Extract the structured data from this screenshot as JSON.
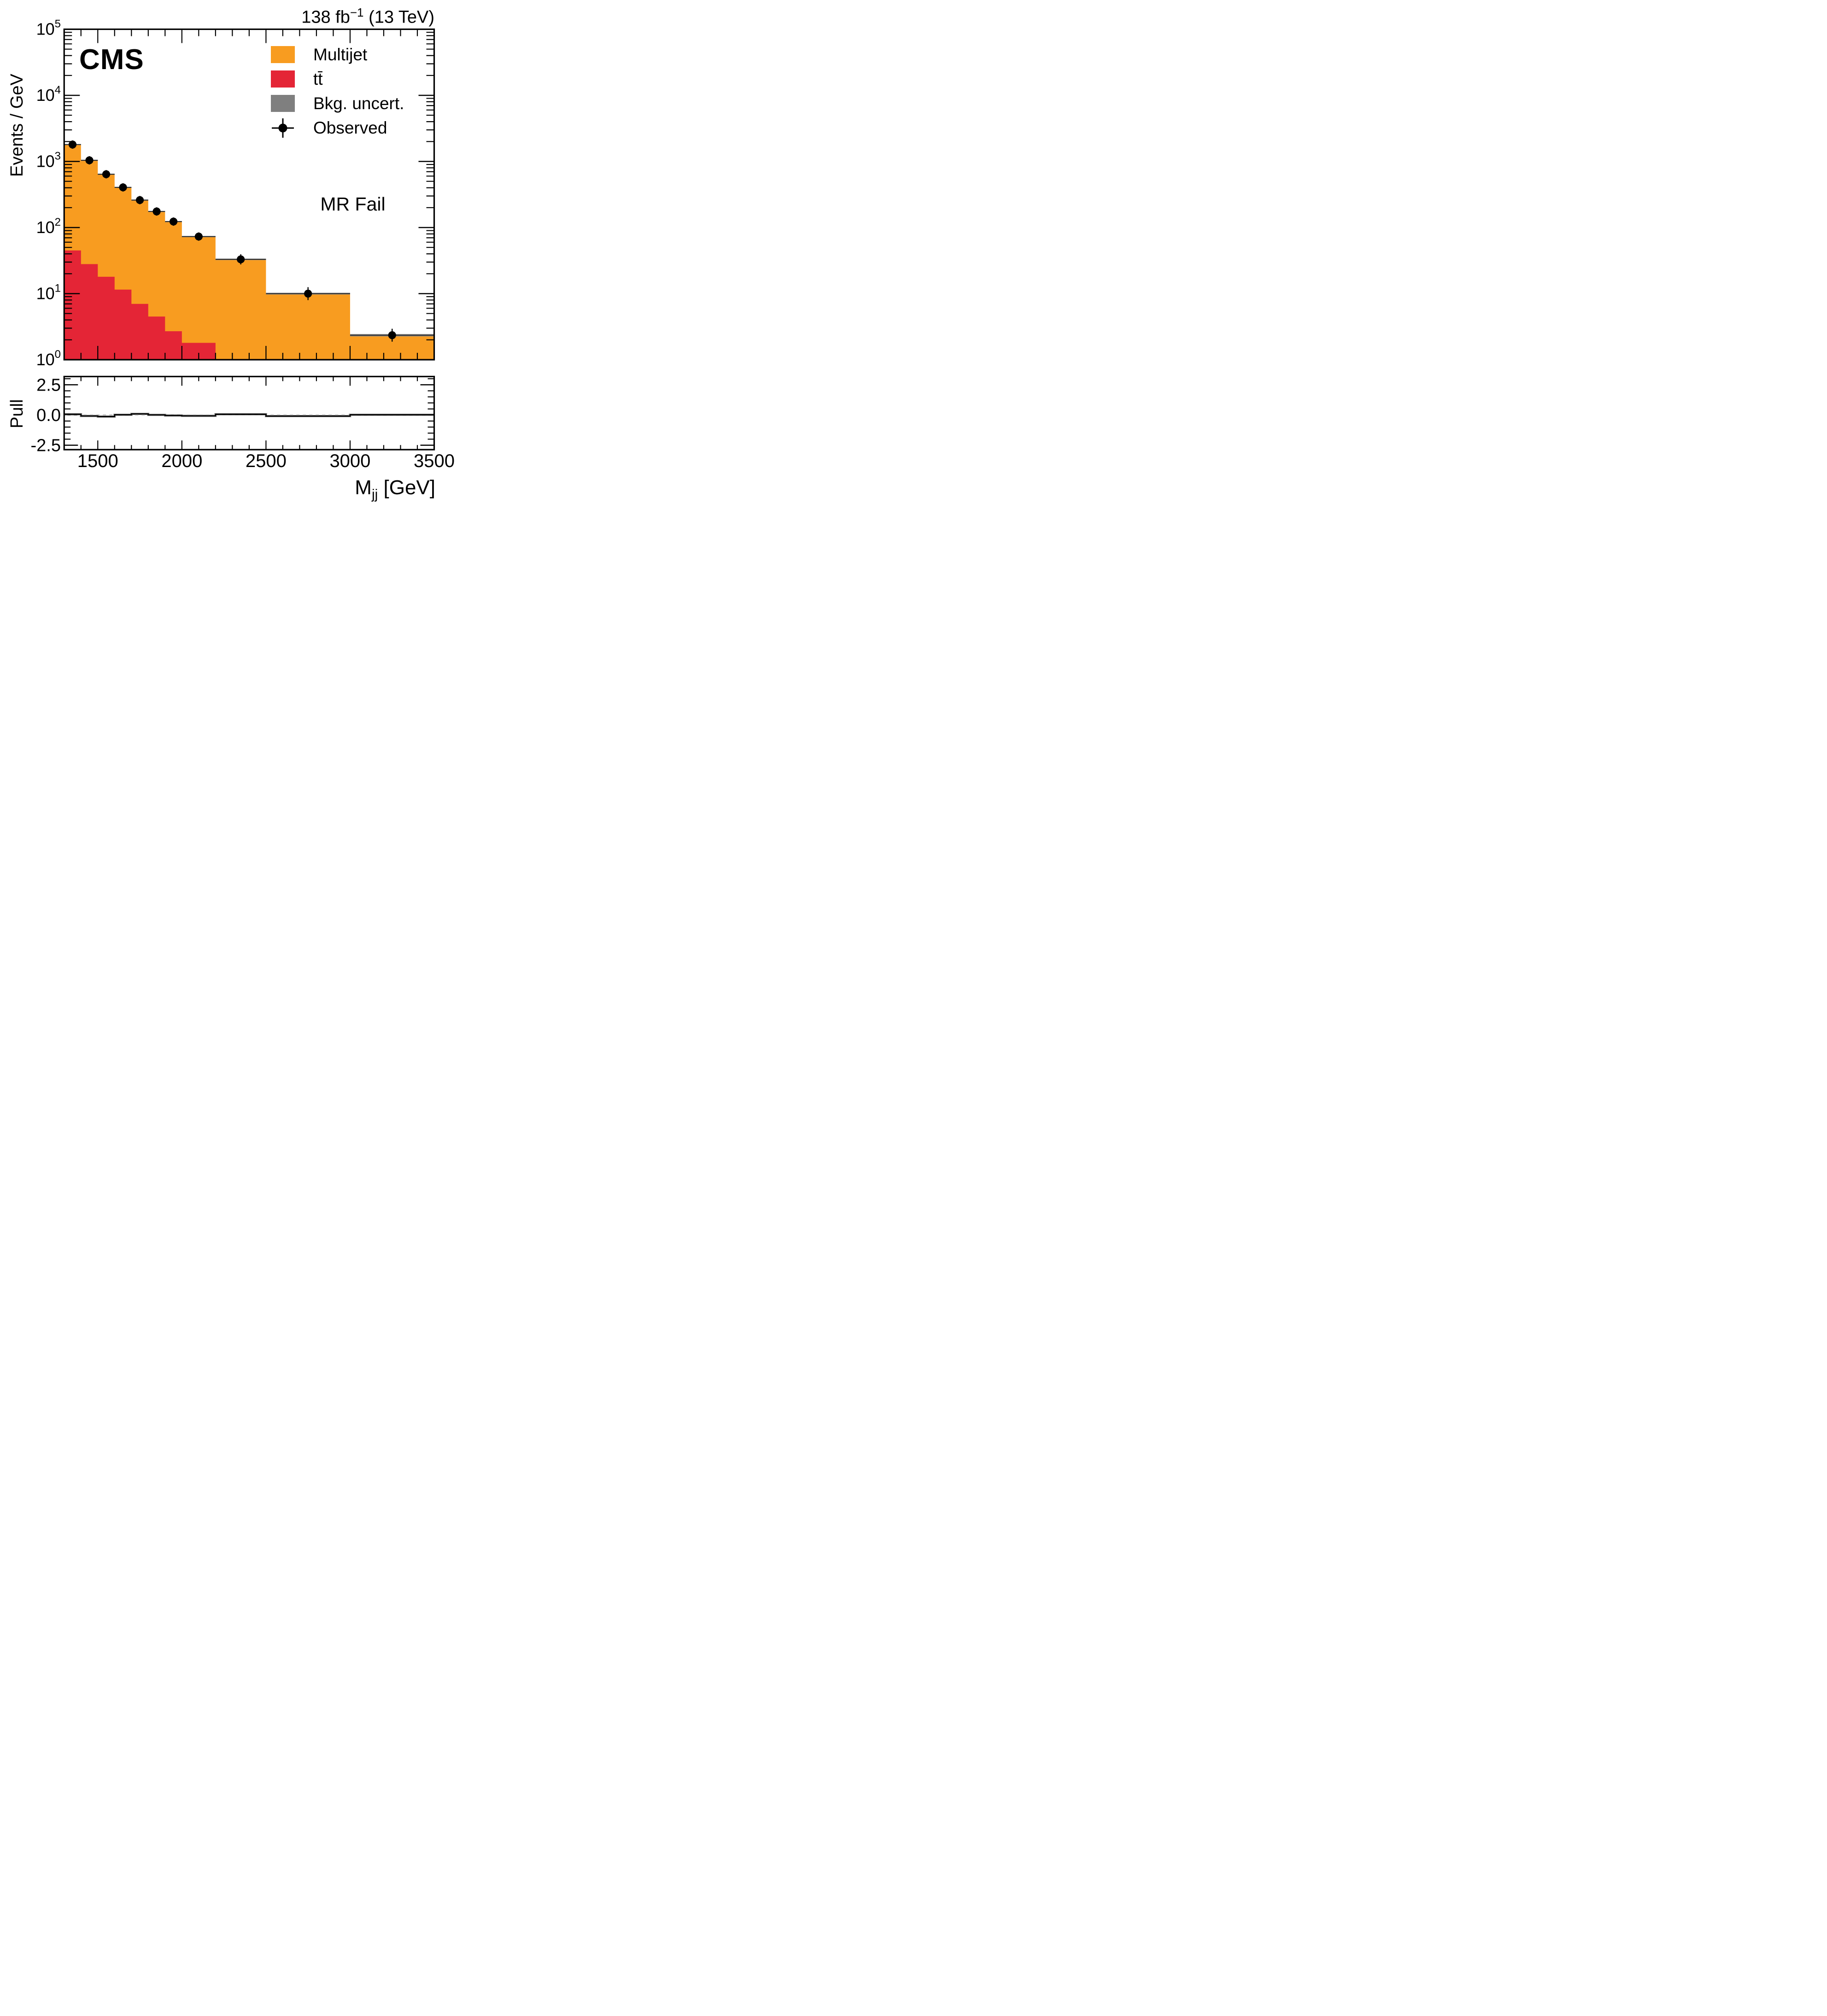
{
  "meta": {
    "experiment": "CMS",
    "lumi_main": "138 fb",
    "lumi_sup": "−1",
    "lumi_rest": " (13 TeV)",
    "region_label": "MR Fail"
  },
  "legend": {
    "items": [
      {
        "label": "Multijet",
        "color": "#F89C20",
        "kind": "box"
      },
      {
        "label": "tt̄",
        "color": "#E42536",
        "kind": "box"
      },
      {
        "label": "Bkg. uncert.",
        "color": "#7F7F7F",
        "kind": "box"
      },
      {
        "label": "Observed",
        "color": "#000000",
        "kind": "marker"
      }
    ]
  },
  "axes": {
    "y_title": "Events / GeV",
    "pull_title": "Pull",
    "x_title_main": "M",
    "x_title_sub": "jj",
    "x_title_rest": " [GeV]"
  },
  "chart_data": {
    "type": "bar",
    "subtype": "stacked-log-histogram-with-pull",
    "xlabel": "Mjj [GeV]",
    "ylabel": "Events / GeV",
    "xlim": [
      1300,
      3500
    ],
    "ylim_exponents": [
      0,
      5
    ],
    "xticks": [
      1500,
      2000,
      2500,
      3000,
      3500
    ],
    "x_minor_step": 100,
    "bin_edges": [
      1300,
      1400,
      1500,
      1600,
      1700,
      1800,
      1900,
      2000,
      2200,
      2500,
      3000,
      3500
    ],
    "series": [
      {
        "name": "Total background (stack top)",
        "values": [
          1800,
          1040,
          640,
          405,
          260,
          175,
          123,
          73,
          33,
          10,
          2.35
        ]
      },
      {
        "name": "tt̄",
        "values": [
          45,
          28,
          18,
          11.5,
          7,
          4.5,
          2.7,
          1.8,
          0,
          0,
          0
        ]
      }
    ],
    "observed": [
      1800,
      1040,
      640,
      405,
      260,
      175,
      123,
      73,
      33,
      10,
      2.35
    ],
    "uncert_rel": [
      0.02,
      0.02,
      0.02,
      0.02,
      0.02,
      0.02,
      0.02,
      0.022,
      0.025,
      0.03,
      0.04
    ],
    "pull": {
      "values": [
        0.06,
        -0.08,
        -0.13,
        0.02,
        0.09,
        0.01,
        -0.04,
        -0.07,
        0.06,
        -0.09,
        0.02
      ],
      "ylim": [
        -2.86,
        3.14
      ],
      "ytick_labels": [
        "2.5",
        "0.0",
        "-2.5"
      ],
      "ytick_values": [
        2.5,
        0.0,
        -2.5
      ],
      "yminor_values": [
        3,
        2,
        1.5,
        1,
        0.5,
        -0.5,
        -1,
        -1.5,
        -2
      ]
    },
    "colors": {
      "multijet": "#F89C20",
      "ttbar": "#E42536",
      "uncert": "#7F7F7F",
      "marker": "#000000",
      "hist_line": "#1a1a1a",
      "pull_dash": "#bdbdbd",
      "pull_band": "#9c9c9c",
      "frame": "#000000"
    },
    "legend_position": "top-right",
    "grid": false
  }
}
